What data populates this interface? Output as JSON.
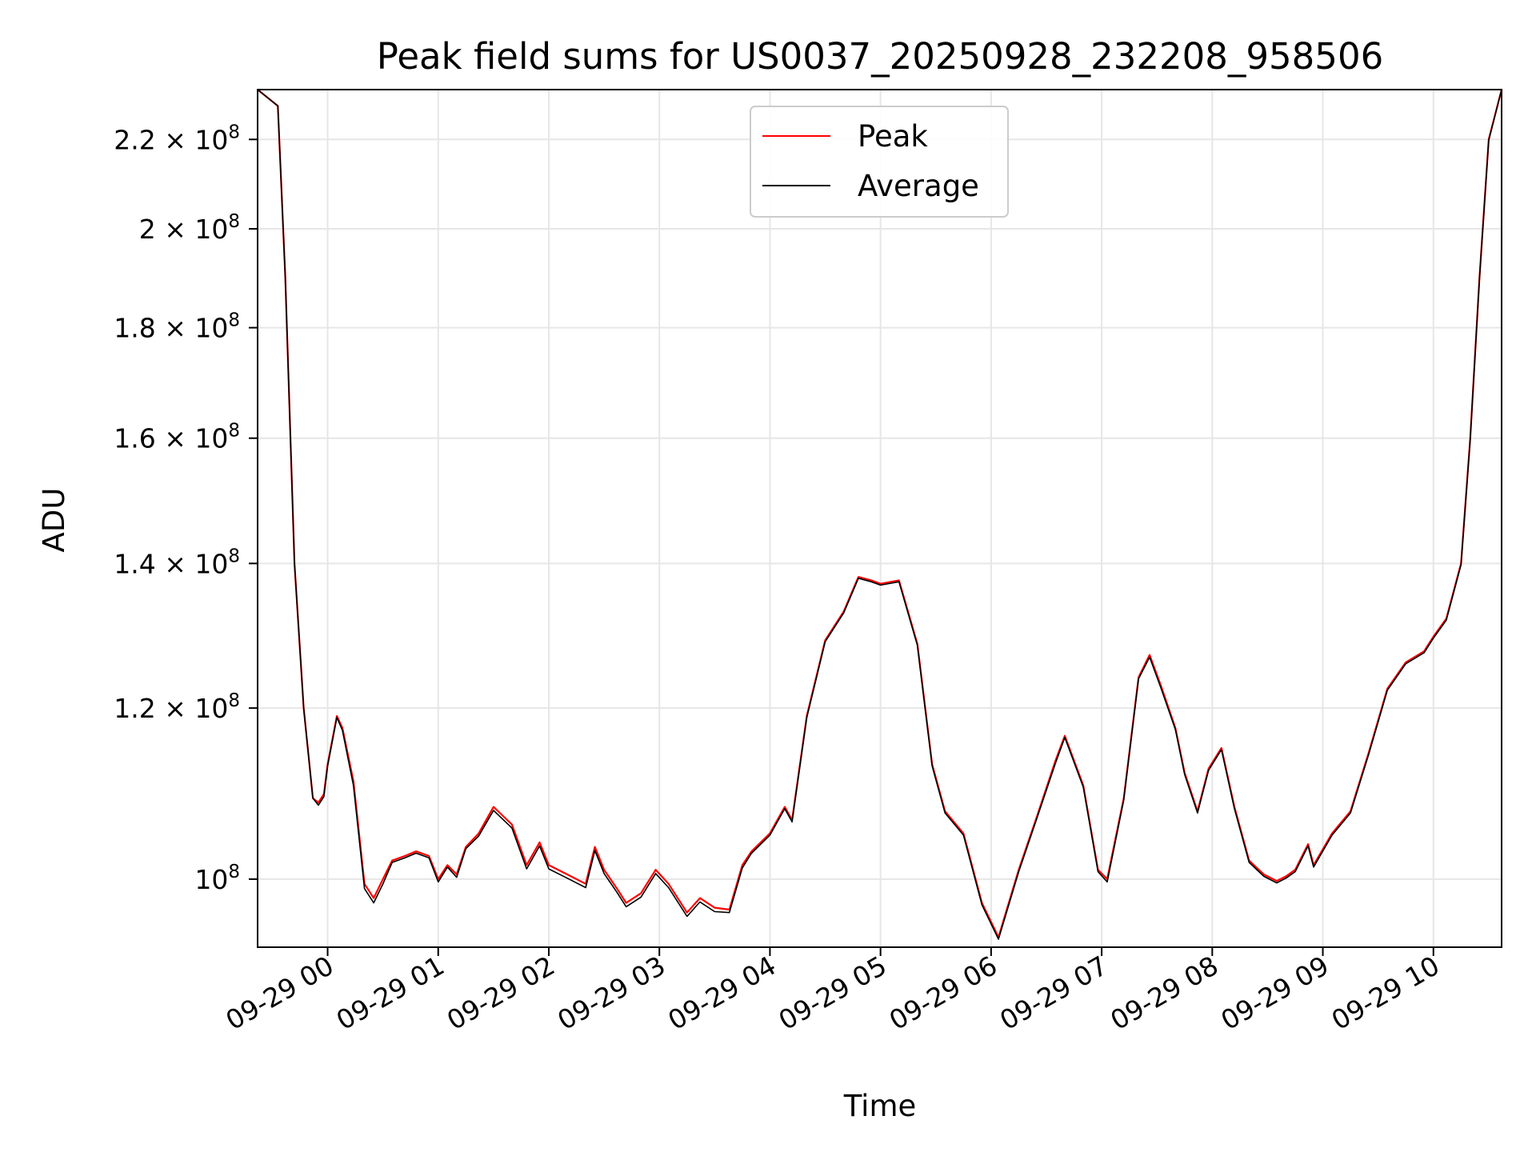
{
  "chart_data": {
    "type": "line",
    "title": "Peak field sums for US0037_20250928_232208_958506",
    "xlabel": "Time",
    "ylabel": "ADU",
    "y_scale": "log",
    "ylim": [
      93000000,
      232000000
    ],
    "xlim": [
      "2025-09-28T23:22",
      "2025-09-29T10:37"
    ],
    "x_tick_labels": [
      "09-29 00",
      "09-29 01",
      "09-29 02",
      "09-29 03",
      "09-29 04",
      "09-29 05",
      "09-29 06",
      "09-29 07",
      "09-29 08",
      "09-29 09",
      "09-29 10"
    ],
    "y_ticks": [
      {
        "value": 100000000,
        "mantissa": "10",
        "exponent": "8"
      },
      {
        "value": 120000000,
        "mantissa": "1.2 × 10",
        "exponent": "8"
      },
      {
        "value": 140000000,
        "mantissa": "1.4 × 10",
        "exponent": "8"
      },
      {
        "value": 160000000,
        "mantissa": "1.6 × 10",
        "exponent": "8"
      },
      {
        "value": 180000000,
        "mantissa": "1.8 × 10",
        "exponent": "8"
      },
      {
        "value": 200000000,
        "mantissa": "2 × 10",
        "exponent": "8"
      },
      {
        "value": 220000000,
        "mantissa": "2.2 × 10",
        "exponent": "8"
      }
    ],
    "grid": true,
    "legend_position": "top-center",
    "x": [
      "2025-09-28T23:22",
      "2025-09-28T23:33",
      "2025-09-28T23:37",
      "2025-09-28T23:42",
      "2025-09-28T23:47",
      "2025-09-28T23:52",
      "2025-09-28T23:55",
      "2025-09-28T23:58",
      "2025-09-29T00:00",
      "2025-09-29T00:05",
      "2025-09-29T00:08",
      "2025-09-29T00:14",
      "2025-09-29T00:20",
      "2025-09-29T00:25",
      "2025-09-29T00:30",
      "2025-09-29T00:35",
      "2025-09-29T00:42",
      "2025-09-29T00:48",
      "2025-09-29T00:55",
      "2025-09-29T01:00",
      "2025-09-29T01:05",
      "2025-09-29T01:10",
      "2025-09-29T01:15",
      "2025-09-29T01:22",
      "2025-09-29T01:30",
      "2025-09-29T01:40",
      "2025-09-29T01:48",
      "2025-09-29T01:55",
      "2025-09-29T02:00",
      "2025-09-29T02:10",
      "2025-09-29T02:20",
      "2025-09-29T02:25",
      "2025-09-29T02:30",
      "2025-09-29T02:37",
      "2025-09-29T02:42",
      "2025-09-29T02:50",
      "2025-09-29T02:58",
      "2025-09-29T03:05",
      "2025-09-29T03:15",
      "2025-09-29T03:22",
      "2025-09-29T03:30",
      "2025-09-29T03:38",
      "2025-09-29T03:45",
      "2025-09-29T03:50",
      "2025-09-29T04:00",
      "2025-09-29T04:08",
      "2025-09-29T04:12",
      "2025-09-29T04:20",
      "2025-09-29T04:30",
      "2025-09-29T04:40",
      "2025-09-29T04:48",
      "2025-09-29T04:55",
      "2025-09-29T05:00",
      "2025-09-29T05:10",
      "2025-09-29T05:20",
      "2025-09-29T05:28",
      "2025-09-29T05:35",
      "2025-09-29T05:45",
      "2025-09-29T05:55",
      "2025-09-29T06:04",
      "2025-09-29T06:15",
      "2025-09-29T06:25",
      "2025-09-29T06:35",
      "2025-09-29T06:40",
      "2025-09-29T06:50",
      "2025-09-29T06:58",
      "2025-09-29T07:03",
      "2025-09-29T07:12",
      "2025-09-29T07:20",
      "2025-09-29T07:26",
      "2025-09-29T07:32",
      "2025-09-29T07:40",
      "2025-09-29T07:45",
      "2025-09-29T07:52",
      "2025-09-29T07:58",
      "2025-09-29T08:05",
      "2025-09-29T08:12",
      "2025-09-29T08:20",
      "2025-09-29T08:28",
      "2025-09-29T08:35",
      "2025-09-29T08:40",
      "2025-09-29T08:45",
      "2025-09-29T08:52",
      "2025-09-29T08:55",
      "2025-09-29T09:05",
      "2025-09-29T09:15",
      "2025-09-29T09:25",
      "2025-09-29T09:35",
      "2025-09-29T09:45",
      "2025-09-29T09:55",
      "2025-09-29T10:00",
      "2025-09-29T10:07",
      "2025-09-29T10:15",
      "2025-09-29T10:20",
      "2025-09-29T10:25",
      "2025-09-29T10:30",
      "2025-09-29T10:37"
    ],
    "series": [
      {
        "name": "Peak",
        "color": "#ff0000",
        "values": [
          232000000,
          228000000,
          190000000,
          140000000,
          120000000,
          109000000,
          108500000,
          109500000,
          113000000,
          119000000,
          117500000,
          111000000,
          99500000,
          98000000,
          100000000,
          102000000,
          102500000,
          103000000,
          102500000,
          100000000,
          101500000,
          100500000,
          103500000,
          105000000,
          108000000,
          106000000,
          101500000,
          104000000,
          101500000,
          100500000,
          99500000,
          103500000,
          101000000,
          99000000,
          97500000,
          98500000,
          101000000,
          99500000,
          96500000,
          98000000,
          97000000,
          96800000,
          101500000,
          103000000,
          105000000,
          108000000,
          106500000,
          119000000,
          129000000,
          133000000,
          138000000,
          137500000,
          137000000,
          137500000,
          128500000,
          113000000,
          107500000,
          105000000,
          97500000,
          94000000,
          101000000,
          107000000,
          113500000,
          116500000,
          110500000,
          101000000,
          100000000,
          109000000,
          124000000,
          127000000,
          123000000,
          117500000,
          112000000,
          107500000,
          112500000,
          115000000,
          108000000,
          102000000,
          100500000,
          99800000,
          100300000,
          101000000,
          103800000,
          101500000,
          105000000,
          107500000,
          114500000,
          122500000,
          126000000,
          127500000,
          129500000,
          132000000,
          140000000,
          160000000,
          190000000,
          220000000,
          232000000
        ]
      },
      {
        "name": "Average",
        "color": "#000000",
        "values": [
          232000000,
          228000000,
          190000000,
          140000000,
          120000000,
          109000000,
          108200000,
          109200000,
          112800000,
          118800000,
          117200000,
          110500000,
          99000000,
          97500000,
          99500000,
          101800000,
          102300000,
          102800000,
          102300000,
          99700000,
          101300000,
          100200000,
          103300000,
          104700000,
          107600000,
          105600000,
          101100000,
          103600000,
          101100000,
          100100000,
          99100000,
          103100000,
          100600000,
          98600000,
          97100000,
          98100000,
          100600000,
          99100000,
          96100000,
          97600000,
          96600000,
          96500000,
          101200000,
          102800000,
          104800000,
          107800000,
          106300000,
          118800000,
          128800000,
          132800000,
          137800000,
          137300000,
          136800000,
          137300000,
          128300000,
          112800000,
          107300000,
          104800000,
          97300000,
          93800000,
          100800000,
          106800000,
          113200000,
          116300000,
          110300000,
          100800000,
          99700000,
          108800000,
          123800000,
          126700000,
          122700000,
          117300000,
          111800000,
          107300000,
          112300000,
          114800000,
          107800000,
          101800000,
          100300000,
          99600000,
          100100000,
          100800000,
          103600000,
          101300000,
          104800000,
          107300000,
          114300000,
          122300000,
          125800000,
          127300000,
          129300000,
          131800000,
          139800000,
          159800000,
          189800000,
          219800000,
          232000000
        ]
      }
    ]
  }
}
